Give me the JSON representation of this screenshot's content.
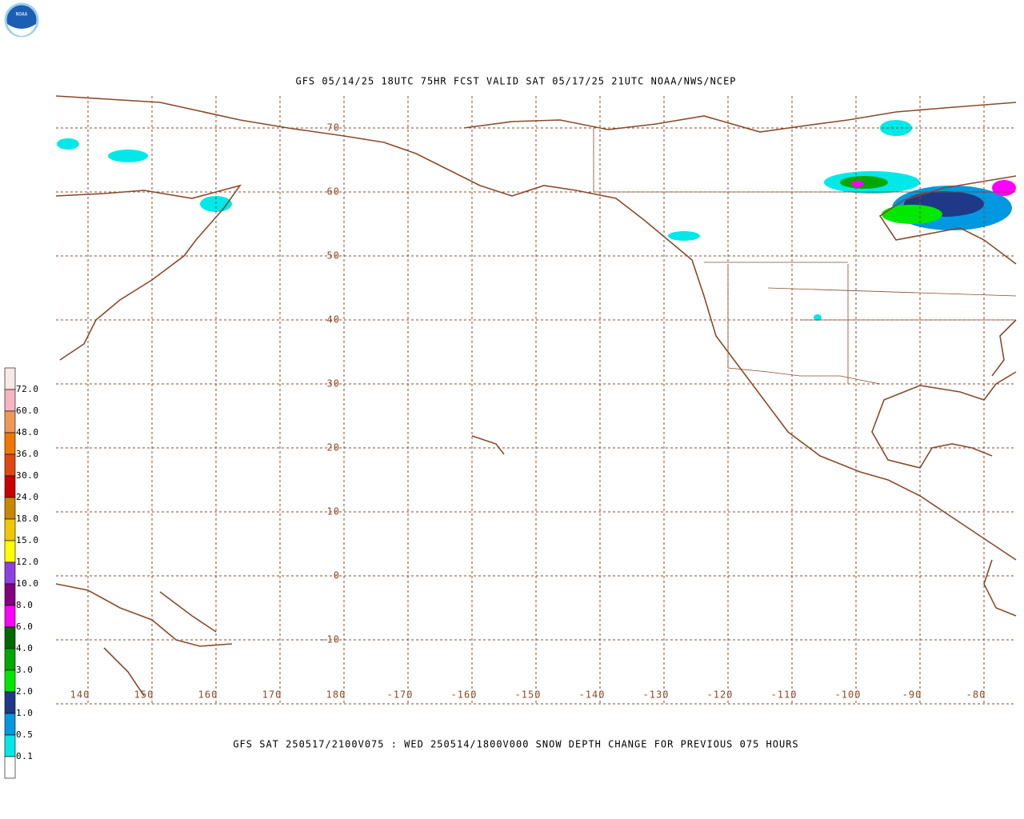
{
  "logo": "NOAA",
  "title": "GFS 05/14/25 18UTC 75HR FCST VALID SAT 05/17/25 21UTC NOAA/NWS/NCEP",
  "caption": "GFS SAT 250517/2100V075 : WED 250514/1800V000 SNOW DEPTH CHANGE FOR PREVIOUS 075 HOURS",
  "lat_labels": [
    "70",
    "60",
    "50",
    "40",
    "30",
    "20",
    "10",
    "0",
    "-10"
  ],
  "lon_labels": [
    "140",
    "150",
    "160",
    "170",
    "180",
    "-170",
    "-160",
    "-150",
    "-140",
    "-130",
    "-120",
    "-110",
    "-100",
    "-90",
    "-80"
  ],
  "legend": {
    "labels": [
      "72.0",
      "60.0",
      "48.0",
      "36.0",
      "30.0",
      "24.0",
      "18.0",
      "15.0",
      "12.0",
      "10.0",
      "8.0",
      "6.0",
      "4.0",
      "3.0",
      "2.0",
      "1.0",
      "0.5",
      "0.1"
    ],
    "colors": [
      "#f8e8e8",
      "#f4b4c0",
      "#f09858",
      "#f07800",
      "#e04810",
      "#c80000",
      "#c88800",
      "#f0c800",
      "#ffff00",
      "#9040e0",
      "#800080",
      "#ff00ff",
      "#006800",
      "#00a800",
      "#00e800",
      "#203888",
      "#0098e0",
      "#00e8e8",
      "#ffffff"
    ]
  }
}
